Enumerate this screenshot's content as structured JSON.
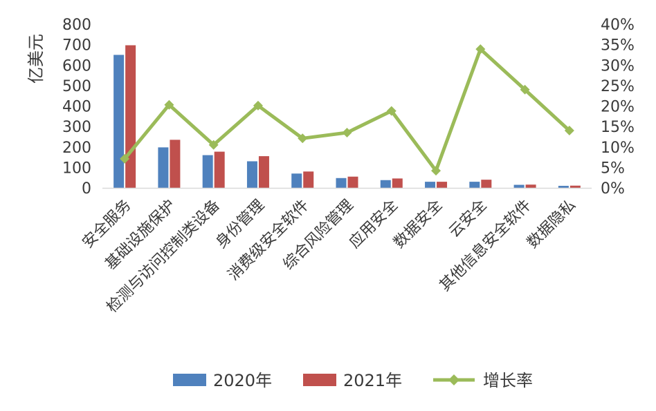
{
  "chart_data": {
    "type": "bar",
    "categories": [
      "安全服务",
      "基础设施保护",
      "检测与访问控制类设备",
      "身份管理",
      "消费级安全软件",
      "综合风险管理",
      "应用安全",
      "数据安全",
      "云安全",
      "其他信息安全软件",
      "数据隐私"
    ],
    "series": [
      {
        "name": "2020年",
        "type": "bar",
        "axis": "left",
        "color": "#4f81bd",
        "values": [
          650,
          198,
          160,
          130,
          70,
          48,
          38,
          30,
          30,
          15,
          10
        ]
      },
      {
        "name": "2021年",
        "type": "bar",
        "axis": "left",
        "color": "#c0504d",
        "values": [
          697,
          235,
          177,
          155,
          80,
          55,
          46,
          30,
          40,
          16,
          11
        ]
      },
      {
        "name": "增长率",
        "type": "line",
        "axis": "right",
        "color": "#9bbb59",
        "values": [
          7.1,
          20.3,
          10.5,
          20.1,
          12.1,
          13.5,
          18.8,
          4.2,
          33.9,
          24.0,
          14.0
        ]
      }
    ],
    "ylabel": "亿美元",
    "y_left": {
      "min": 0,
      "max": 800,
      "step": 100,
      "ticks": [
        "0",
        "100",
        "200",
        "300",
        "400",
        "500",
        "600",
        "700",
        "800"
      ]
    },
    "y_right": {
      "min": 0,
      "max": 40,
      "step": 5,
      "ticks": [
        "0%",
        "5%",
        "10%",
        "15%",
        "20%",
        "25%",
        "30%",
        "35%",
        "40%"
      ]
    },
    "legend_position": "bottom",
    "grid": false
  }
}
